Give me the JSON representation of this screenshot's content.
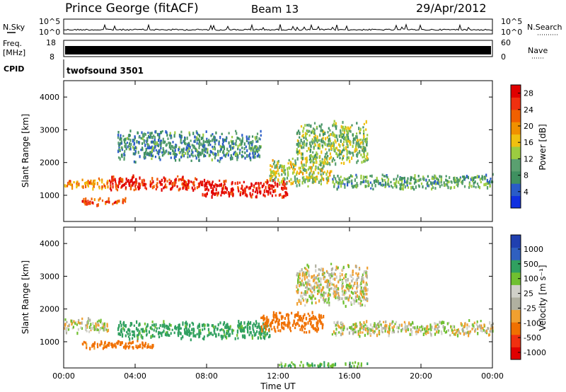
{
  "header": {
    "station": "Prince George (fitACF)",
    "beam": "Beam 13",
    "date": "29/Apr/2012"
  },
  "noise_panel": {
    "left_label": "N.Sky",
    "right_label": "N.Search",
    "left_ticks": [
      "10^5",
      "10^0"
    ],
    "right_ticks": [
      "10^5",
      "10^0"
    ]
  },
  "freq_panel": {
    "left_label_line1": "Freq.",
    "left_label_line2": "[MHz]",
    "left_ticks": [
      "18",
      "8"
    ],
    "right_label": "Nave",
    "right_ticks": [
      "60",
      "0"
    ]
  },
  "cpid_panel": {
    "label": "CPID",
    "program": "twofsound 3501"
  },
  "colors": {
    "power_scale": [
      "#1030e0",
      "#2a5cc8",
      "#3f9060",
      "#5aa070",
      "#9ccc40",
      "#f0c010",
      "#f09000",
      "#f06000",
      "#f03010",
      "#e00000"
    ],
    "velocity_scale": [
      "#e00000",
      "#f03010",
      "#f07000",
      "#f0a030",
      "#b0b0a0",
      "#d0d0c8",
      "#70c030",
      "#30a060",
      "#3060c0",
      "#2040b0"
    ]
  },
  "chart_data": [
    {
      "type": "heatmap",
      "title": "",
      "xlabel": "",
      "ylabel": "Slant Range [km]",
      "xlim": [
        0,
        24
      ],
      "ylim": [
        200,
        4500
      ],
      "x_ticks": [
        "00:00",
        "04:00",
        "08:00",
        "12:00",
        "16:00",
        "20:00",
        "00:00"
      ],
      "y_ticks": [
        1000,
        2000,
        3000,
        4000
      ],
      "colorbar": {
        "label": "Power [dB]",
        "ticks": [
          4,
          8,
          12,
          16,
          20,
          24,
          28
        ],
        "range": [
          0,
          30
        ]
      },
      "regions": [
        {
          "t_start": 0.0,
          "t_end": 2.5,
          "r_center": 1350,
          "r_halfwidth": 180,
          "value": 20
        },
        {
          "t_start": 1.0,
          "t_end": 3.5,
          "r_center": 800,
          "r_halfwidth": 120,
          "value": 24
        },
        {
          "t_start": 2.5,
          "t_end": 7.5,
          "r_center": 1350,
          "r_halfwidth": 250,
          "value": 26
        },
        {
          "t_start": 7.5,
          "t_end": 12.5,
          "r_center": 1200,
          "r_halfwidth": 300,
          "value": 28
        },
        {
          "t_start": 11.5,
          "t_end": 15.0,
          "r_center": 1700,
          "r_halfwidth": 450,
          "value": 14
        },
        {
          "t_start": 13.0,
          "t_end": 17.0,
          "r_center": 2600,
          "r_halfwidth": 700,
          "value": 12
        },
        {
          "t_start": 15.0,
          "t_end": 24.0,
          "r_center": 1400,
          "r_halfwidth": 250,
          "value": 10
        },
        {
          "t_start": 3.0,
          "t_end": 11.0,
          "r_center": 2500,
          "r_halfwidth": 500,
          "value": 8
        }
      ]
    },
    {
      "type": "heatmap",
      "title": "",
      "xlabel": "Time UT",
      "ylabel": "Slant Range [km]",
      "xlim": [
        0,
        24
      ],
      "ylim": [
        200,
        4500
      ],
      "x_ticks": [
        "00:00",
        "04:00",
        "08:00",
        "12:00",
        "16:00",
        "20:00",
        "00:00"
      ],
      "y_ticks": [
        1000,
        2000,
        3000,
        4000
      ],
      "colorbar": {
        "label": "Velocity [m s⁻¹]",
        "ticks": [
          1000,
          500,
          100,
          25,
          -25,
          -100,
          -500,
          -1000
        ]
      },
      "regions": [
        {
          "t_start": 0.0,
          "t_end": 2.5,
          "r_center": 1500,
          "r_halfwidth": 250,
          "value": 0
        },
        {
          "t_start": 1.0,
          "t_end": 5.0,
          "r_center": 900,
          "r_halfwidth": 150,
          "value": -150
        },
        {
          "t_start": 3.0,
          "t_end": 11.5,
          "r_center": 1350,
          "r_halfwidth": 300,
          "value": 150
        },
        {
          "t_start": 11.0,
          "t_end": 14.5,
          "r_center": 1600,
          "r_halfwidth": 350,
          "value": -200
        },
        {
          "t_start": 13.0,
          "t_end": 17.0,
          "r_center": 2700,
          "r_halfwidth": 700,
          "value": 0
        },
        {
          "t_start": 15.0,
          "t_end": 24.0,
          "r_center": 1400,
          "r_halfwidth": 250,
          "value": 0
        },
        {
          "t_start": 12.0,
          "t_end": 17.0,
          "r_center": 300,
          "r_halfwidth": 80,
          "value": 80
        }
      ]
    }
  ]
}
